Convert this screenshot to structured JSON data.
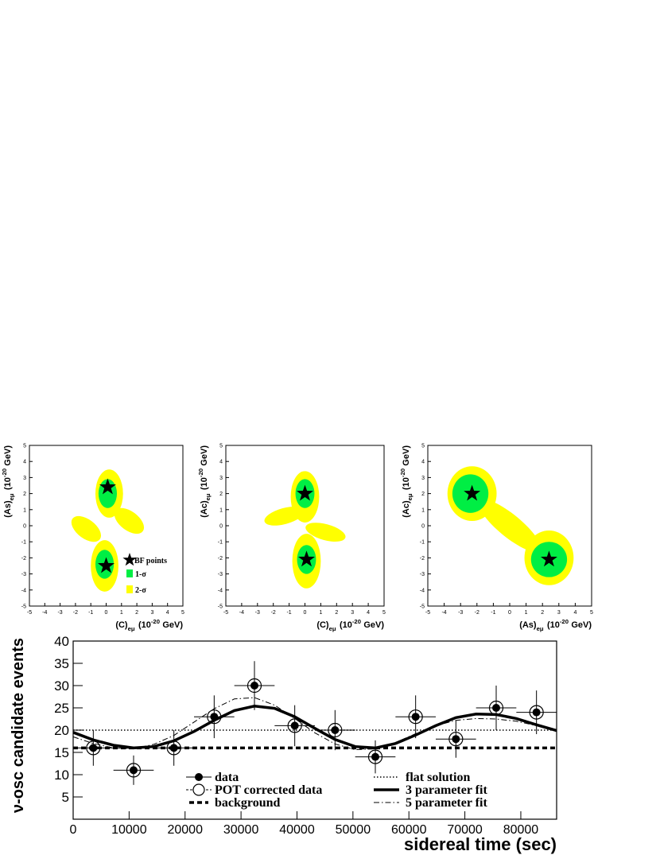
{
  "chart_data": [
    {
      "type": "contour",
      "xlabel": [
        "(C)",
        "eμ",
        "(10",
        "-20",
        "GeV)"
      ],
      "ylabel": [
        "(As)",
        "eμ",
        "(10",
        "-20",
        "GeV)"
      ],
      "xlim": [
        -5,
        5
      ],
      "ylim": [
        -5,
        5
      ],
      "xticks": [
        -5,
        -4,
        -3,
        -2,
        -1,
        0,
        1,
        2,
        3,
        4,
        5
      ],
      "yticks": [
        -5,
        -4,
        -3,
        -2,
        -1,
        0,
        1,
        2,
        3,
        4,
        5
      ],
      "series": [
        {
          "name": "BF points",
          "color": "#000000",
          "x": [
            0.1,
            0
          ],
          "y": [
            2.4,
            -2.5
          ]
        }
      ],
      "regions": [
        {
          "name": "1-σ",
          "color": "#00ee44"
        },
        {
          "name": "2-σ",
          "color": "#ffff00"
        }
      ],
      "legend": true
    },
    {
      "type": "contour",
      "xlabel": [
        "(C)",
        "eμ",
        "(10",
        "-20",
        "GeV)"
      ],
      "ylabel": [
        "(Ac)",
        "eμ",
        "(10",
        "-20",
        "GeV)"
      ],
      "xlim": [
        -5,
        5
      ],
      "ylim": [
        -5,
        5
      ],
      "xticks": [
        -5,
        -4,
        -3,
        -2,
        -1,
        0,
        1,
        2,
        3,
        4,
        5
      ],
      "yticks": [
        -5,
        -4,
        -3,
        -2,
        -1,
        0,
        1,
        2,
        3,
        4,
        5
      ],
      "series": [
        {
          "color": "#000000",
          "x": [
            0,
            0.1
          ],
          "y": [
            2,
            -2.1
          ]
        }
      ],
      "regions": [
        {
          "color": "#00ee44"
        },
        {
          "color": "#ffff00"
        }
      ],
      "legend": false
    },
    {
      "type": "contour",
      "xlabel": [
        "(As)",
        "eμ",
        "(10",
        "-20",
        "GeV)"
      ],
      "ylabel": [
        "(Ac)",
        "eμ",
        "(10",
        "-20",
        "GeV)"
      ],
      "xlim": [
        -5,
        5
      ],
      "ylim": [
        -5,
        5
      ],
      "xticks": [
        -5,
        -4,
        -3,
        -2,
        -1,
        0,
        1,
        2,
        3,
        4,
        5
      ],
      "yticks": [
        -5,
        -4,
        -3,
        -2,
        -1,
        0,
        1,
        2,
        3,
        4,
        5
      ],
      "series": [
        {
          "color": "#000000",
          "x": [
            -2.3,
            2.4
          ],
          "y": [
            2,
            -2.1
          ]
        }
      ],
      "regions": [
        {
          "color": "#00ee44"
        },
        {
          "color": "#ffff00"
        }
      ],
      "legend": false
    },
    {
      "type": "line",
      "xlabel": "sidereal time (sec)",
      "ylabel": "ν-osc candidate events",
      "xlim": [
        0,
        86400
      ],
      "ylim": [
        0,
        40
      ],
      "xticks": [
        0,
        10000,
        20000,
        30000,
        40000,
        50000,
        60000,
        70000,
        80000
      ],
      "yticks": [
        5,
        10,
        15,
        20,
        25,
        30,
        35,
        40
      ],
      "series": [
        {
          "name": "data",
          "style": "filled-marker",
          "color": "#000000",
          "x": [
            3600,
            10800,
            18000,
            25200,
            32400,
            39600,
            46800,
            54000,
            61200,
            68400,
            75600,
            82800
          ],
          "values": [
            16,
            11,
            16,
            23,
            30,
            21,
            20,
            14,
            23,
            18,
            25,
            24
          ],
          "errors": [
            4,
            3.3,
            4,
            4.8,
            5.5,
            4.6,
            4.5,
            3.7,
            4.8,
            4.2,
            5,
            4.9
          ],
          "x_errors": [
            3600,
            3600,
            3600,
            3600,
            3600,
            3600,
            3600,
            3600,
            3600,
            3600,
            3600,
            3600
          ]
        },
        {
          "name": "POT corrected data",
          "style": "open-marker",
          "color": "#000000",
          "x": [
            3600,
            10800,
            18000,
            25200,
            32400,
            39600,
            46800,
            54000,
            61200,
            68400,
            75600,
            82800
          ],
          "values": [
            16,
            11,
            16,
            23,
            30,
            21,
            20,
            14,
            23,
            18,
            25,
            24
          ]
        },
        {
          "name": "background",
          "style": "dashed",
          "color": "#000000",
          "x": [
            0,
            86400
          ],
          "values": [
            16,
            16
          ]
        },
        {
          "name": "flat solution",
          "style": "dotted",
          "color": "#000000",
          "x": [
            0,
            86400
          ],
          "values": [
            20,
            20
          ]
        },
        {
          "name": "3 parameter fit",
          "style": "thick",
          "color": "#000000",
          "x": [
            0,
            3600,
            7200,
            10800,
            14400,
            18000,
            21600,
            25200,
            28800,
            32400,
            36000,
            39600,
            43200,
            46800,
            50400,
            54000,
            57600,
            61200,
            64800,
            68400,
            72000,
            75600,
            79200,
            82800,
            86400
          ],
          "values": [
            19.5,
            17.8,
            16.6,
            16.0,
            16.3,
            17.6,
            19.7,
            22.2,
            24.4,
            25.4,
            24.9,
            23.0,
            20.4,
            17.9,
            16.3,
            16.0,
            17.0,
            18.9,
            21.0,
            22.8,
            23.6,
            23.5,
            22.6,
            21.2,
            19.9
          ]
        },
        {
          "name": "5 parameter fit",
          "style": "dash-dot",
          "color": "#000000",
          "x": [
            0,
            3600,
            7200,
            10800,
            14400,
            18000,
            21600,
            25200,
            28800,
            32400,
            36000,
            39600,
            43200,
            46800,
            50400,
            54000,
            57600,
            61200,
            64800,
            68400,
            72000,
            75600,
            79200,
            82800,
            86400
          ],
          "values": [
            18.5,
            17.0,
            16.0,
            15.8,
            16.8,
            18.8,
            21.8,
            24.8,
            27.0,
            27.3,
            25.6,
            22.6,
            19.4,
            16.9,
            15.6,
            15.8,
            17.2,
            19.2,
            21.0,
            22.2,
            22.6,
            22.5,
            22.0,
            21.0,
            19.9
          ]
        }
      ]
    }
  ]
}
